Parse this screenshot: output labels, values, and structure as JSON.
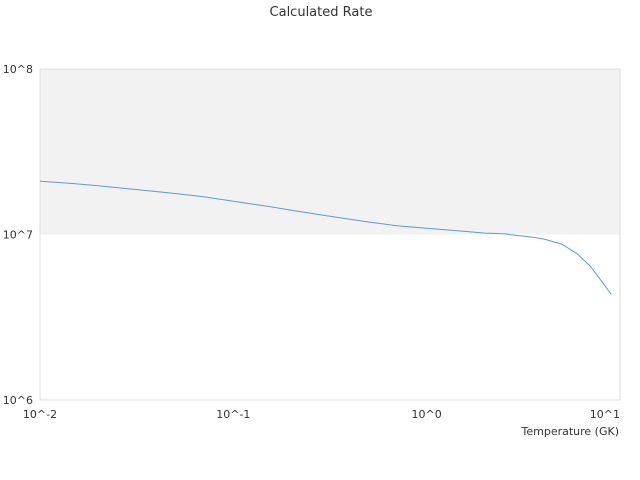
{
  "chart_data": {
    "type": "line",
    "title": "Calculated Rate",
    "xlabel": "Temperature (GK)",
    "ylabel": "",
    "x_scale": "log",
    "y_scale": "log",
    "xlim": [
      0.01,
      10
    ],
    "ylim": [
      1000000,
      100000000
    ],
    "x_ticks": [
      {
        "value": 0.01,
        "label": "10^-2"
      },
      {
        "value": 0.1,
        "label": "10^-1"
      },
      {
        "value": 1,
        "label": "10^0"
      },
      {
        "value": 10,
        "label": "10^1"
      }
    ],
    "y_ticks": [
      {
        "value": 1000000,
        "label": "10^6"
      },
      {
        "value": 10000000,
        "label": "10^7"
      },
      {
        "value": 100000000,
        "label": "10^8"
      }
    ],
    "shaded_band": {
      "from": 10000000,
      "to": 100000000,
      "color": "#f2f2f2"
    },
    "grid": false,
    "legend": "none",
    "series": [
      {
        "color": "#5b9bd5",
        "x": [
          0.01,
          0.012,
          0.015,
          0.02,
          0.03,
          0.05,
          0.07,
          0.1,
          0.15,
          0.2,
          0.3,
          0.5,
          0.7,
          1.0,
          1.5,
          2.0,
          2.5,
          3.0,
          3.5,
          4.0,
          5.0,
          6.0,
          7.0,
          8.0,
          9.0
        ],
        "values": [
          21000000,
          20700000,
          20300000,
          19700000,
          18800000,
          17700000,
          16900000,
          15900000,
          14800000,
          14000000,
          13000000,
          11900000,
          11300000,
          10900000,
          10500000,
          10200000,
          10100000,
          9850000,
          9650000,
          9400000,
          8750000,
          7650000,
          6450000,
          5250000,
          4350000
        ]
      }
    ]
  }
}
